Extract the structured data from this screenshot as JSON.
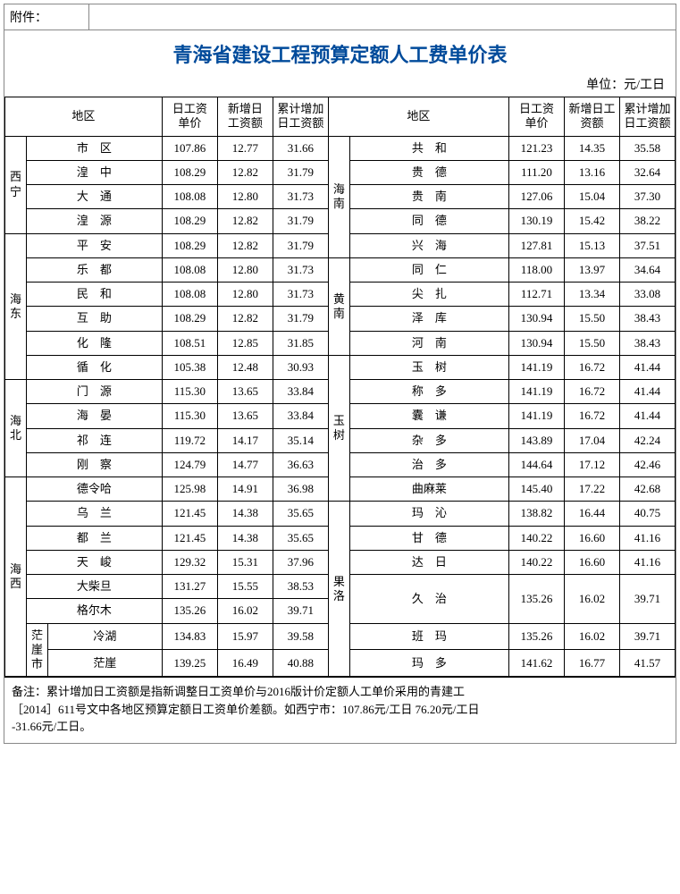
{
  "attachment_label": "附件：",
  "title": "青海省建设工程预算定额人工费单价表",
  "unit_label": "单位：元/工日",
  "headers": {
    "region": "地区",
    "daily_wage": "日工资\n单价",
    "new_add": "新增日\n工资额",
    "cumulative": "累计增加\n日工资额",
    "new_add_alt": "新增日工\n资额"
  },
  "left_groups": [
    {
      "region": "西\n宁",
      "rows": [
        {
          "county": "市　区",
          "v1": "107.86",
          "v2": "12.77",
          "v3": "31.66"
        },
        {
          "county": "湟　中",
          "v1": "108.29",
          "v2": "12.82",
          "v3": "31.79"
        },
        {
          "county": "大　通",
          "v1": "108.08",
          "v2": "12.80",
          "v3": "31.73"
        },
        {
          "county": "湟　源",
          "v1": "108.29",
          "v2": "12.82",
          "v3": "31.79"
        }
      ]
    },
    {
      "region": "海\n东",
      "rows": [
        {
          "county": "平　安",
          "v1": "108.29",
          "v2": "12.82",
          "v3": "31.79"
        },
        {
          "county": "乐　都",
          "v1": "108.08",
          "v2": "12.80",
          "v3": "31.73"
        },
        {
          "county": "民　和",
          "v1": "108.08",
          "v2": "12.80",
          "v3": "31.73"
        },
        {
          "county": "互　助",
          "v1": "108.29",
          "v2": "12.82",
          "v3": "31.79"
        },
        {
          "county": "化　隆",
          "v1": "108.51",
          "v2": "12.85",
          "v3": "31.85"
        },
        {
          "county": "循　化",
          "v1": "105.38",
          "v2": "12.48",
          "v3": "30.93"
        }
      ]
    },
    {
      "region": "海\n北",
      "rows": [
        {
          "county": "门　源",
          "v1": "115.30",
          "v2": "13.65",
          "v3": "33.84"
        },
        {
          "county": "海　晏",
          "v1": "115.30",
          "v2": "13.65",
          "v3": "33.84"
        },
        {
          "county": "祁　连",
          "v1": "119.72",
          "v2": "14.17",
          "v3": "35.14"
        },
        {
          "county": "刚　察",
          "v1": "124.79",
          "v2": "14.77",
          "v3": "36.63"
        }
      ]
    },
    {
      "region": "海\n西",
      "rows": [
        {
          "county": "德令哈",
          "tight": true,
          "v1": "125.98",
          "v2": "14.91",
          "v3": "36.98"
        },
        {
          "county": "乌　兰",
          "v1": "121.45",
          "v2": "14.38",
          "v3": "35.65"
        },
        {
          "county": "都　兰",
          "v1": "121.45",
          "v2": "14.38",
          "v3": "35.65"
        },
        {
          "county": "天　峻",
          "v1": "129.32",
          "v2": "15.31",
          "v3": "37.96"
        },
        {
          "county": "大柴旦",
          "tight": true,
          "v1": "131.27",
          "v2": "15.55",
          "v3": "38.53"
        },
        {
          "county": "格尔木",
          "tight": true,
          "v1": "135.26",
          "v2": "16.02",
          "v3": "39.71"
        }
      ],
      "sub": {
        "label": "茫\n崖\n市",
        "rows": [
          {
            "county": "冷湖",
            "v1": "134.83",
            "v2": "15.97",
            "v3": "39.58"
          },
          {
            "county": "茫崖",
            "v1": "139.25",
            "v2": "16.49",
            "v3": "40.88"
          }
        ]
      }
    }
  ],
  "right_groups": [
    {
      "region": "海\n南",
      "rows": [
        {
          "county": "共　和",
          "v1": "121.23",
          "v2": "14.35",
          "v3": "35.58"
        },
        {
          "county": "贵　德",
          "v1": "111.20",
          "v2": "13.16",
          "v3": "32.64"
        },
        {
          "county": "贵　南",
          "v1": "127.06",
          "v2": "15.04",
          "v3": "37.30"
        },
        {
          "county": "同　德",
          "v1": "130.19",
          "v2": "15.42",
          "v3": "38.22"
        },
        {
          "county": "兴　海",
          "v1": "127.81",
          "v2": "15.13",
          "v3": "37.51"
        }
      ]
    },
    {
      "region": "黄\n南",
      "rows": [
        {
          "county": "同　仁",
          "v1": "118.00",
          "v2": "13.97",
          "v3": "34.64"
        },
        {
          "county": "尖　扎",
          "v1": "112.71",
          "v2": "13.34",
          "v3": "33.08"
        },
        {
          "county": "泽　库",
          "v1": "130.94",
          "v2": "15.50",
          "v3": "38.43"
        },
        {
          "county": "河　南",
          "v1": "130.94",
          "v2": "15.50",
          "v3": "38.43"
        }
      ]
    },
    {
      "region": "玉\n树",
      "rows": [
        {
          "county": "玉　树",
          "v1": "141.19",
          "v2": "16.72",
          "v3": "41.44"
        },
        {
          "county": "称　多",
          "v1": "141.19",
          "v2": "16.72",
          "v3": "41.44"
        },
        {
          "county": "囊　谦",
          "v1": "141.19",
          "v2": "16.72",
          "v3": "41.44"
        },
        {
          "county": "杂　多",
          "v1": "143.89",
          "v2": "17.04",
          "v3": "42.24"
        },
        {
          "county": "治　多",
          "v1": "144.64",
          "v2": "17.12",
          "v3": "42.46"
        },
        {
          "county": "曲麻莱",
          "tight": true,
          "v1": "145.40",
          "v2": "17.22",
          "v3": "42.68"
        }
      ]
    },
    {
      "region": "果\n洛",
      "rows": [
        {
          "county": "玛　沁",
          "v1": "138.82",
          "v2": "16.44",
          "v3": "40.75"
        },
        {
          "county": "甘　德",
          "v1": "140.22",
          "v2": "16.60",
          "v3": "41.16"
        },
        {
          "county": "达　日",
          "v1": "140.22",
          "v2": "16.60",
          "v3": "41.16"
        },
        {
          "county": "久　治",
          "tall": true,
          "v1": "135.26",
          "v2": "16.02",
          "v3": "39.71"
        },
        {
          "county": "班　玛",
          "tall": true,
          "v1": "135.26",
          "v2": "16.02",
          "v3": "39.71"
        },
        {
          "county": "玛　多",
          "tall": true,
          "v1": "141.62",
          "v2": "16.77",
          "v3": "41.57"
        }
      ]
    }
  ],
  "note": "备注：累计增加日工资额是指新调整日工资单价与2016版计价定额人工单价采用的青建工\n［2014］611号文中各地区预算定额日工资单价差额。如西宁市：107.86元/工日 76.20元/工日\n-31.66元/工日。"
}
